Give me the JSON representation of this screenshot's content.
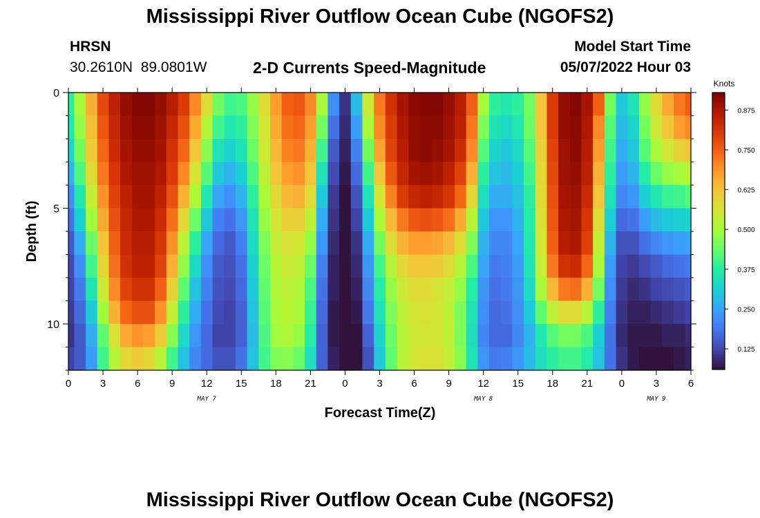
{
  "title": "Mississippi River Outflow Ocean Cube (NGOFS2)",
  "repeated_title": "Mississippi River Outflow Ocean Cube (NGOFS2)",
  "station": {
    "name": "HRSN",
    "coords": "30.2610N  89.0801W"
  },
  "plot_title": "2-D Currents Speed-Magnitude",
  "model_start": {
    "label": "Model Start Time",
    "value": "05/07/2022 Hour 03"
  },
  "colorbar": {
    "unit": "Knots",
    "ticks": [
      "0.125",
      "0.250",
      "0.375",
      "0.500",
      "0.625",
      "0.750",
      "0.875"
    ],
    "colors": [
      "#30123b",
      "#4145ab",
      "#4675ed",
      "#39a2fc",
      "#1bcfd4",
      "#24eca6",
      "#61fc6c",
      "#a4fc3b",
      "#d1e834",
      "#f3c63a",
      "#fe9b2d",
      "#f36315",
      "#d93806",
      "#b11901",
      "#7a0403"
    ]
  },
  "chart_data": {
    "type": "heatmap",
    "xlabel": "Forecast Time(Z)",
    "ylabel": "Depth (ft)",
    "x_tick_labels": [
      "0",
      "3",
      "6",
      "9",
      "12",
      "15",
      "18",
      "21",
      "0",
      "3",
      "6",
      "9",
      "12",
      "15",
      "18",
      "21",
      "0",
      "3",
      "6"
    ],
    "date_labels": [
      {
        "label": "MAY 7",
        "hour": 12
      },
      {
        "label": "MAY 8",
        "hour": 36
      },
      {
        "label": "MAY 9",
        "hour": 51
      }
    ],
    "y_tick_labels": [
      "0",
      "5",
      "10"
    ],
    "xlim_hours": [
      0,
      54
    ],
    "ylim_ft": [
      0,
      12
    ],
    "value_range_knots": [
      0.06,
      0.93
    ],
    "depth_levels_ft": [
      0.5,
      1.5,
      2.5,
      3.5,
      4.5,
      5.5,
      6.5,
      7.5,
      8.5,
      9.5,
      10.5,
      11.5
    ],
    "time_hours": [
      0,
      1,
      2,
      3,
      4,
      5,
      6,
      7,
      8,
      9,
      10,
      11,
      12,
      13,
      14,
      15,
      16,
      17,
      18,
      19,
      20,
      21,
      22,
      23,
      24,
      25,
      26,
      27,
      28,
      29,
      30,
      31,
      32,
      33,
      34,
      35,
      36,
      37,
      38,
      39,
      40,
      41,
      42,
      43,
      44,
      45,
      46,
      47,
      48,
      49,
      50,
      51,
      52,
      53,
      54
    ],
    "values_knots": [
      [
        0.38,
        0.5,
        0.65,
        0.78,
        0.85,
        0.9,
        0.92,
        0.92,
        0.9,
        0.86,
        0.8,
        0.7,
        0.58,
        0.45,
        0.4,
        0.41,
        0.48,
        0.58,
        0.68,
        0.75,
        0.76,
        0.7,
        0.5,
        0.22,
        0.1,
        0.28,
        0.55,
        0.72,
        0.82,
        0.88,
        0.91,
        0.92,
        0.92,
        0.9,
        0.86,
        0.75,
        0.5,
        0.38,
        0.36,
        0.38,
        0.45,
        0.62,
        0.8,
        0.9,
        0.92,
        0.88,
        0.75,
        0.45,
        0.3,
        0.35,
        0.48,
        0.58,
        0.66,
        0.72,
        0.75
      ],
      [
        0.36,
        0.48,
        0.63,
        0.76,
        0.84,
        0.89,
        0.91,
        0.91,
        0.89,
        0.84,
        0.77,
        0.66,
        0.52,
        0.4,
        0.36,
        0.38,
        0.46,
        0.56,
        0.66,
        0.73,
        0.74,
        0.68,
        0.45,
        0.18,
        0.09,
        0.24,
        0.5,
        0.7,
        0.8,
        0.87,
        0.9,
        0.91,
        0.91,
        0.89,
        0.85,
        0.72,
        0.46,
        0.35,
        0.33,
        0.36,
        0.44,
        0.62,
        0.8,
        0.9,
        0.91,
        0.87,
        0.7,
        0.42,
        0.28,
        0.32,
        0.45,
        0.55,
        0.62,
        0.68,
        0.7
      ],
      [
        0.32,
        0.45,
        0.61,
        0.74,
        0.83,
        0.88,
        0.9,
        0.9,
        0.88,
        0.82,
        0.74,
        0.62,
        0.47,
        0.35,
        0.32,
        0.35,
        0.44,
        0.55,
        0.64,
        0.71,
        0.72,
        0.65,
        0.4,
        0.15,
        0.08,
        0.2,
        0.45,
        0.67,
        0.79,
        0.86,
        0.9,
        0.91,
        0.9,
        0.88,
        0.83,
        0.7,
        0.42,
        0.32,
        0.3,
        0.33,
        0.42,
        0.6,
        0.79,
        0.89,
        0.91,
        0.86,
        0.68,
        0.4,
        0.26,
        0.3,
        0.42,
        0.5,
        0.56,
        0.6,
        0.62
      ],
      [
        0.27,
        0.41,
        0.58,
        0.72,
        0.81,
        0.87,
        0.89,
        0.89,
        0.87,
        0.8,
        0.7,
        0.57,
        0.42,
        0.3,
        0.27,
        0.31,
        0.41,
        0.53,
        0.62,
        0.68,
        0.69,
        0.62,
        0.35,
        0.13,
        0.07,
        0.17,
        0.4,
        0.62,
        0.76,
        0.84,
        0.88,
        0.89,
        0.88,
        0.85,
        0.79,
        0.65,
        0.38,
        0.29,
        0.28,
        0.31,
        0.4,
        0.59,
        0.78,
        0.89,
        0.9,
        0.85,
        0.65,
        0.38,
        0.24,
        0.27,
        0.37,
        0.44,
        0.48,
        0.5,
        0.52
      ],
      [
        0.22,
        0.36,
        0.54,
        0.69,
        0.79,
        0.85,
        0.88,
        0.88,
        0.85,
        0.77,
        0.65,
        0.51,
        0.36,
        0.25,
        0.22,
        0.27,
        0.38,
        0.5,
        0.59,
        0.64,
        0.65,
        0.58,
        0.3,
        0.11,
        0.06,
        0.14,
        0.35,
        0.56,
        0.71,
        0.8,
        0.84,
        0.85,
        0.84,
        0.81,
        0.74,
        0.59,
        0.34,
        0.26,
        0.26,
        0.29,
        0.38,
        0.58,
        0.77,
        0.88,
        0.89,
        0.83,
        0.62,
        0.35,
        0.21,
        0.23,
        0.31,
        0.36,
        0.39,
        0.4,
        0.42
      ],
      [
        0.18,
        0.31,
        0.49,
        0.66,
        0.77,
        0.84,
        0.87,
        0.87,
        0.83,
        0.73,
        0.59,
        0.44,
        0.3,
        0.2,
        0.18,
        0.23,
        0.35,
        0.48,
        0.56,
        0.6,
        0.6,
        0.53,
        0.26,
        0.1,
        0.06,
        0.12,
        0.3,
        0.5,
        0.64,
        0.72,
        0.76,
        0.77,
        0.76,
        0.73,
        0.66,
        0.52,
        0.3,
        0.23,
        0.23,
        0.27,
        0.37,
        0.57,
        0.76,
        0.87,
        0.88,
        0.81,
        0.58,
        0.31,
        0.17,
        0.18,
        0.24,
        0.28,
        0.3,
        0.31,
        0.32
      ],
      [
        0.15,
        0.26,
        0.44,
        0.62,
        0.75,
        0.83,
        0.86,
        0.86,
        0.81,
        0.69,
        0.53,
        0.38,
        0.25,
        0.17,
        0.15,
        0.2,
        0.33,
        0.46,
        0.54,
        0.57,
        0.56,
        0.48,
        0.23,
        0.09,
        0.06,
        0.1,
        0.26,
        0.45,
        0.58,
        0.65,
        0.68,
        0.68,
        0.67,
        0.64,
        0.58,
        0.46,
        0.27,
        0.21,
        0.21,
        0.25,
        0.36,
        0.56,
        0.75,
        0.86,
        0.87,
        0.79,
        0.54,
        0.27,
        0.14,
        0.14,
        0.18,
        0.21,
        0.23,
        0.24,
        0.25
      ],
      [
        0.13,
        0.22,
        0.4,
        0.59,
        0.73,
        0.82,
        0.85,
        0.85,
        0.79,
        0.65,
        0.48,
        0.33,
        0.22,
        0.15,
        0.14,
        0.18,
        0.31,
        0.44,
        0.52,
        0.55,
        0.53,
        0.44,
        0.2,
        0.08,
        0.06,
        0.09,
        0.23,
        0.4,
        0.52,
        0.59,
        0.62,
        0.62,
        0.61,
        0.58,
        0.52,
        0.41,
        0.25,
        0.19,
        0.2,
        0.24,
        0.35,
        0.54,
        0.72,
        0.82,
        0.83,
        0.74,
        0.5,
        0.24,
        0.12,
        0.11,
        0.13,
        0.15,
        0.17,
        0.18,
        0.19
      ],
      [
        0.12,
        0.19,
        0.35,
        0.55,
        0.7,
        0.79,
        0.82,
        0.82,
        0.75,
        0.6,
        0.43,
        0.29,
        0.2,
        0.14,
        0.13,
        0.17,
        0.3,
        0.43,
        0.51,
        0.53,
        0.51,
        0.41,
        0.18,
        0.08,
        0.06,
        0.08,
        0.21,
        0.37,
        0.48,
        0.55,
        0.58,
        0.58,
        0.57,
        0.54,
        0.48,
        0.37,
        0.23,
        0.18,
        0.19,
        0.23,
        0.33,
        0.5,
        0.64,
        0.72,
        0.73,
        0.65,
        0.45,
        0.22,
        0.11,
        0.09,
        0.1,
        0.12,
        0.13,
        0.14,
        0.15
      ],
      [
        0.11,
        0.17,
        0.3,
        0.49,
        0.65,
        0.74,
        0.77,
        0.77,
        0.69,
        0.54,
        0.38,
        0.26,
        0.18,
        0.13,
        0.12,
        0.16,
        0.29,
        0.42,
        0.5,
        0.52,
        0.5,
        0.39,
        0.17,
        0.07,
        0.06,
        0.07,
        0.19,
        0.35,
        0.46,
        0.53,
        0.56,
        0.57,
        0.56,
        0.53,
        0.46,
        0.35,
        0.22,
        0.17,
        0.18,
        0.22,
        0.3,
        0.43,
        0.53,
        0.58,
        0.58,
        0.52,
        0.38,
        0.2,
        0.1,
        0.08,
        0.08,
        0.09,
        0.1,
        0.11,
        0.12
      ],
      [
        0.1,
        0.15,
        0.26,
        0.43,
        0.57,
        0.66,
        0.69,
        0.68,
        0.61,
        0.47,
        0.33,
        0.23,
        0.17,
        0.12,
        0.12,
        0.16,
        0.28,
        0.41,
        0.49,
        0.51,
        0.48,
        0.37,
        0.16,
        0.07,
        0.06,
        0.06,
        0.16,
        0.32,
        0.44,
        0.52,
        0.55,
        0.56,
        0.56,
        0.53,
        0.46,
        0.34,
        0.21,
        0.17,
        0.17,
        0.21,
        0.27,
        0.36,
        0.42,
        0.45,
        0.45,
        0.41,
        0.31,
        0.18,
        0.09,
        0.07,
        0.07,
        0.07,
        0.08,
        0.08,
        0.09
      ],
      [
        0.12,
        0.15,
        0.24,
        0.4,
        0.52,
        0.59,
        0.61,
        0.59,
        0.52,
        0.4,
        0.29,
        0.21,
        0.17,
        0.14,
        0.14,
        0.18,
        0.29,
        0.4,
        0.46,
        0.47,
        0.44,
        0.34,
        0.16,
        0.08,
        0.06,
        0.06,
        0.14,
        0.3,
        0.43,
        0.52,
        0.56,
        0.57,
        0.57,
        0.54,
        0.47,
        0.35,
        0.23,
        0.19,
        0.2,
        0.23,
        0.28,
        0.34,
        0.38,
        0.4,
        0.4,
        0.37,
        0.29,
        0.18,
        0.1,
        0.07,
        0.06,
        0.06,
        0.06,
        0.07,
        0.08
      ]
    ]
  }
}
